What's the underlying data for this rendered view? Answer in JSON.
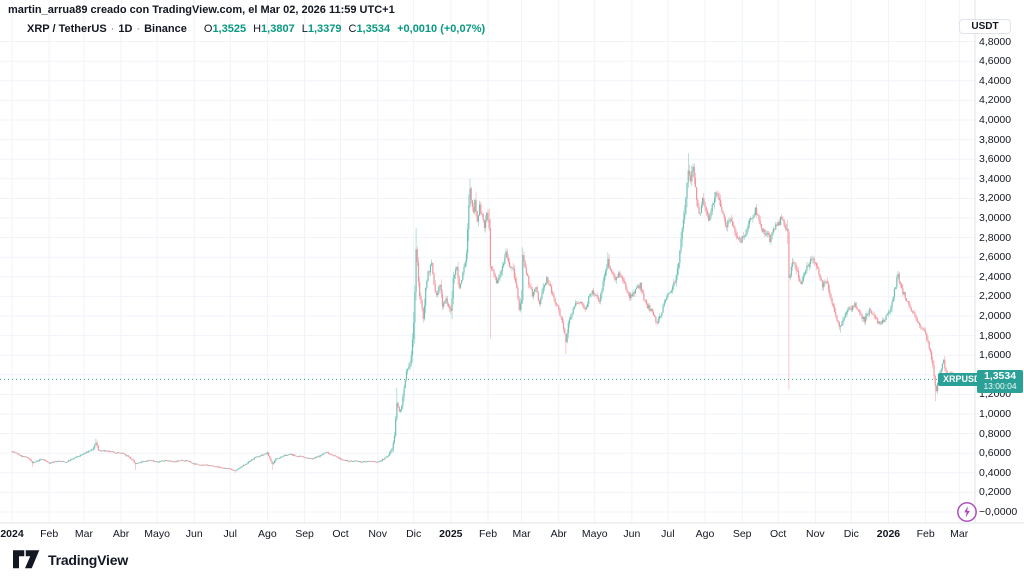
{
  "attribution": "martin_arrua89 creado con TradingView.com, el Mar 02, 2026 11:59 UTC+1",
  "legend": {
    "symbol_title": "XRP / TetherUS",
    "separator": "·",
    "interval": "1D",
    "exchange": "Binance",
    "ohlc": {
      "o_label": "O",
      "o": "1,3525",
      "h_label": "H",
      "h": "1,3807",
      "l_label": "L",
      "l": "1,3379",
      "c_label": "C",
      "c": "1,3534",
      "change": "+0,0010 (+0,07%)"
    }
  },
  "price_scale": {
    "currency_button": "USDT",
    "labels": [
      {
        "value": 4.8,
        "text": "4,8000"
      },
      {
        "value": 4.6,
        "text": "4,6000"
      },
      {
        "value": 4.4,
        "text": "4,4000"
      },
      {
        "value": 4.2,
        "text": "4,2000"
      },
      {
        "value": 4.0,
        "text": "4,0000"
      },
      {
        "value": 3.8,
        "text": "3,8000"
      },
      {
        "value": 3.6,
        "text": "3,6000"
      },
      {
        "value": 3.4,
        "text": "3,4000"
      },
      {
        "value": 3.2,
        "text": "3,2000"
      },
      {
        "value": 3.0,
        "text": "3,0000"
      },
      {
        "value": 2.8,
        "text": "2,8000"
      },
      {
        "value": 2.6,
        "text": "2,6000"
      },
      {
        "value": 2.4,
        "text": "2,4000"
      },
      {
        "value": 2.2,
        "text": "2,2000"
      },
      {
        "value": 2.0,
        "text": "2,0000"
      },
      {
        "value": 1.8,
        "text": "1,8000"
      },
      {
        "value": 1.6,
        "text": "1,6000"
      },
      {
        "value": 1.4,
        "text": "1,4000"
      },
      {
        "value": 1.2,
        "text": "1,2000"
      },
      {
        "value": 1.0,
        "text": "1,0000"
      },
      {
        "value": 0.8,
        "text": "0,8000"
      },
      {
        "value": 0.6,
        "text": "0,6000"
      },
      {
        "value": 0.4,
        "text": "0,4000"
      },
      {
        "value": 0.2,
        "text": "0,2000"
      },
      {
        "value": 0.0,
        "text": "−0,0000"
      }
    ]
  },
  "time_scale": {
    "labels": [
      {
        "text": "2024",
        "day": 0,
        "major": true
      },
      {
        "text": "Feb",
        "day": 31
      },
      {
        "text": "Mar",
        "day": 60
      },
      {
        "text": "Abr",
        "day": 91
      },
      {
        "text": "Mayo",
        "day": 121
      },
      {
        "text": "Jun",
        "day": 152
      },
      {
        "text": "Jul",
        "day": 182
      },
      {
        "text": "Ago",
        "day": 213
      },
      {
        "text": "Sep",
        "day": 244
      },
      {
        "text": "Oct",
        "day": 274
      },
      {
        "text": "Nov",
        "day": 305
      },
      {
        "text": "Dic",
        "day": 335
      },
      {
        "text": "2025",
        "day": 366,
        "major": true
      },
      {
        "text": "Feb",
        "day": 397
      },
      {
        "text": "Mar",
        "day": 425
      },
      {
        "text": "Abr",
        "day": 456
      },
      {
        "text": "Mayo",
        "day": 486
      },
      {
        "text": "Jun",
        "day": 517
      },
      {
        "text": "Jul",
        "day": 547
      },
      {
        "text": "Ago",
        "day": 578
      },
      {
        "text": "Sep",
        "day": 609
      },
      {
        "text": "Oct",
        "day": 639
      },
      {
        "text": "Nov",
        "day": 670
      },
      {
        "text": "Dic",
        "day": 700
      },
      {
        "text": "2026",
        "day": 731,
        "major": true
      },
      {
        "text": "Feb",
        "day": 762
      },
      {
        "text": "Mar",
        "day": 790
      }
    ]
  },
  "last_price": {
    "symbol_badge": "XRPUSDT",
    "price": "1,3534",
    "countdown": "13:00:04"
  },
  "footer": {
    "logo_text": "TradingView"
  },
  "colors": {
    "up": "#6bc2b3",
    "down": "#f4939c",
    "accent_teal": "#089981",
    "badge_bg": "#2aa096",
    "last_price_line": "#2aa096",
    "grid": "#f0f3fa",
    "axis_border": "#e0e3eb",
    "boost_purple": "#ab47bc",
    "text": "#131722"
  },
  "chart_data": {
    "type": "candlestick",
    "title": "XRP / TetherUS · 1D · Binance",
    "symbol": "XRPUSDT",
    "timeframe": "1D",
    "x_range": [
      "2024-01-01",
      "2026-03-02"
    ],
    "y_axis": {
      "min": 0.0,
      "max": 4.8,
      "tick_step": 0.2
    },
    "grid": true,
    "current_ohlc": {
      "open": 1.3525,
      "high": 1.3807,
      "low": 1.3379,
      "close": 1.3534,
      "change": 0.001,
      "change_pct": 0.07
    },
    "anchors": [
      [
        0,
        0.62
      ],
      [
        8,
        0.57
      ],
      [
        14,
        0.55
      ],
      [
        17,
        0.5
      ],
      [
        25,
        0.54
      ],
      [
        31,
        0.5
      ],
      [
        38,
        0.52
      ],
      [
        45,
        0.51
      ],
      [
        52,
        0.55
      ],
      [
        59,
        0.59
      ],
      [
        64,
        0.62
      ],
      [
        68,
        0.65
      ],
      [
        70,
        0.71
      ],
      [
        72,
        0.63
      ],
      [
        78,
        0.62
      ],
      [
        85,
        0.61
      ],
      [
        91,
        0.6
      ],
      [
        97,
        0.57
      ],
      [
        103,
        0.49
      ],
      [
        108,
        0.51
      ],
      [
        115,
        0.53
      ],
      [
        121,
        0.51
      ],
      [
        128,
        0.53
      ],
      [
        135,
        0.51
      ],
      [
        141,
        0.53
      ],
      [
        147,
        0.52
      ],
      [
        152,
        0.49
      ],
      [
        160,
        0.48
      ],
      [
        168,
        0.47
      ],
      [
        176,
        0.45
      ],
      [
        182,
        0.44
      ],
      [
        186,
        0.42
      ],
      [
        190,
        0.45
      ],
      [
        196,
        0.5
      ],
      [
        202,
        0.55
      ],
      [
        208,
        0.58
      ],
      [
        213,
        0.6
      ],
      [
        217,
        0.49
      ],
      [
        221,
        0.55
      ],
      [
        226,
        0.57
      ],
      [
        232,
        0.59
      ],
      [
        237,
        0.57
      ],
      [
        244,
        0.56
      ],
      [
        250,
        0.54
      ],
      [
        256,
        0.57
      ],
      [
        262,
        0.61
      ],
      [
        268,
        0.58
      ],
      [
        274,
        0.54
      ],
      [
        280,
        0.52
      ],
      [
        286,
        0.52
      ],
      [
        292,
        0.51
      ],
      [
        298,
        0.52
      ],
      [
        305,
        0.51
      ],
      [
        310,
        0.54
      ],
      [
        314,
        0.58
      ],
      [
        317,
        0.65
      ],
      [
        319,
        0.78
      ],
      [
        321,
        1.12
      ],
      [
        323,
        1.02
      ],
      [
        325,
        1.08
      ],
      [
        327,
        1.25
      ],
      [
        329,
        1.42
      ],
      [
        331,
        1.47
      ],
      [
        333,
        1.6
      ],
      [
        335,
        1.92
      ],
      [
        336,
        2.25
      ],
      [
        337,
        2.68
      ],
      [
        338,
        2.52
      ],
      [
        340,
        2.22
      ],
      [
        343,
        1.98
      ],
      [
        345,
        2.28
      ],
      [
        347,
        2.45
      ],
      [
        350,
        2.52
      ],
      [
        352,
        2.32
      ],
      [
        354,
        2.2
      ],
      [
        357,
        2.32
      ],
      [
        359,
        2.12
      ],
      [
        362,
        2.18
      ],
      [
        365,
        2.06
      ],
      [
        366,
        2.04
      ],
      [
        368,
        2.36
      ],
      [
        371,
        2.52
      ],
      [
        373,
        2.28
      ],
      [
        376,
        2.44
      ],
      [
        379,
        2.62
      ],
      [
        380,
        2.92
      ],
      [
        381,
        3.1
      ],
      [
        382,
        3.3
      ],
      [
        383,
        3.16
      ],
      [
        385,
        3.05
      ],
      [
        386,
        3.22
      ],
      [
        388,
        2.98
      ],
      [
        390,
        3.12
      ],
      [
        392,
        3.02
      ],
      [
        394,
        2.9
      ],
      [
        396,
        3.06
      ],
      [
        398,
        2.88
      ],
      [
        399,
        2.5
      ],
      [
        401,
        2.44
      ],
      [
        404,
        2.36
      ],
      [
        407,
        2.44
      ],
      [
        410,
        2.56
      ],
      [
        412,
        2.66
      ],
      [
        415,
        2.52
      ],
      [
        418,
        2.46
      ],
      [
        421,
        2.28
      ],
      [
        423,
        2.06
      ],
      [
        425,
        2.18
      ],
      [
        426,
        2.6
      ],
      [
        428,
        2.46
      ],
      [
        431,
        2.34
      ],
      [
        434,
        2.22
      ],
      [
        437,
        2.28
      ],
      [
        440,
        2.12
      ],
      [
        443,
        2.28
      ],
      [
        446,
        2.38
      ],
      [
        449,
        2.28
      ],
      [
        452,
        2.18
      ],
      [
        456,
        2.06
      ],
      [
        459,
        1.95
      ],
      [
        462,
        1.72
      ],
      [
        464,
        1.92
      ],
      [
        467,
        2.04
      ],
      [
        470,
        2.12
      ],
      [
        474,
        2.14
      ],
      [
        478,
        2.08
      ],
      [
        481,
        2.18
      ],
      [
        484,
        2.24
      ],
      [
        487,
        2.2
      ],
      [
        490,
        2.16
      ],
      [
        493,
        2.34
      ],
      [
        497,
        2.56
      ],
      [
        500,
        2.46
      ],
      [
        503,
        2.38
      ],
      [
        506,
        2.44
      ],
      [
        509,
        2.36
      ],
      [
        512,
        2.28
      ],
      [
        515,
        2.2
      ],
      [
        518,
        2.24
      ],
      [
        521,
        2.28
      ],
      [
        524,
        2.32
      ],
      [
        527,
        2.16
      ],
      [
        530,
        2.1
      ],
      [
        533,
        2.06
      ],
      [
        536,
        1.98
      ],
      [
        538,
        1.94
      ],
      [
        541,
        2.02
      ],
      [
        544,
        2.12
      ],
      [
        547,
        2.22
      ],
      [
        550,
        2.28
      ],
      [
        553,
        2.36
      ],
      [
        556,
        2.56
      ],
      [
        558,
        2.76
      ],
      [
        560,
        2.96
      ],
      [
        562,
        3.18
      ],
      [
        564,
        3.48
      ],
      [
        566,
        3.4
      ],
      [
        568,
        3.52
      ],
      [
        570,
        3.32
      ],
      [
        572,
        3.12
      ],
      [
        574,
        3.02
      ],
      [
        576,
        3.18
      ],
      [
        578,
        3.1
      ],
      [
        581,
        2.96
      ],
      [
        584,
        3.14
      ],
      [
        587,
        3.28
      ],
      [
        590,
        3.2
      ],
      [
        593,
        3.04
      ],
      [
        596,
        2.92
      ],
      [
        599,
        3.02
      ],
      [
        602,
        2.88
      ],
      [
        605,
        2.82
      ],
      [
        608,
        2.78
      ],
      [
        611,
        2.84
      ],
      [
        614,
        2.92
      ],
      [
        617,
        3.02
      ],
      [
        620,
        3.08
      ],
      [
        623,
        2.98
      ],
      [
        626,
        2.88
      ],
      [
        629,
        2.84
      ],
      [
        632,
        2.78
      ],
      [
        635,
        2.86
      ],
      [
        638,
        2.92
      ],
      [
        641,
        2.98
      ],
      [
        644,
        2.94
      ],
      [
        647,
        2.86
      ],
      [
        648,
        2.4
      ],
      [
        650,
        2.48
      ],
      [
        652,
        2.56
      ],
      [
        655,
        2.44
      ],
      [
        658,
        2.34
      ],
      [
        661,
        2.44
      ],
      [
        664,
        2.52
      ],
      [
        667,
        2.6
      ],
      [
        670,
        2.52
      ],
      [
        673,
        2.42
      ],
      [
        676,
        2.32
      ],
      [
        679,
        2.36
      ],
      [
        682,
        2.22
      ],
      [
        685,
        2.1
      ],
      [
        688,
        1.96
      ],
      [
        691,
        1.88
      ],
      [
        694,
        2.0
      ],
      [
        697,
        2.06
      ],
      [
        700,
        2.08
      ],
      [
        703,
        2.12
      ],
      [
        707,
        2.02
      ],
      [
        711,
        1.96
      ],
      [
        715,
        2.06
      ],
      [
        719,
        1.98
      ],
      [
        723,
        1.93
      ],
      [
        727,
        1.96
      ],
      [
        731,
        2.02
      ],
      [
        734,
        2.12
      ],
      [
        737,
        2.32
      ],
      [
        739,
        2.42
      ],
      [
        741,
        2.3
      ],
      [
        744,
        2.22
      ],
      [
        747,
        2.14
      ],
      [
        750,
        2.06
      ],
      [
        753,
        2.0
      ],
      [
        756,
        1.94
      ],
      [
        759,
        1.88
      ],
      [
        762,
        1.8
      ],
      [
        764,
        1.72
      ],
      [
        766,
        1.62
      ],
      [
        768,
        1.5
      ],
      [
        770,
        1.28
      ],
      [
        771,
        1.24
      ],
      [
        773,
        1.38
      ],
      [
        775,
        1.46
      ],
      [
        777,
        1.54
      ],
      [
        779,
        1.44
      ],
      [
        781,
        1.38
      ],
      [
        783,
        1.44
      ],
      [
        785,
        1.36
      ],
      [
        787,
        1.31
      ],
      [
        789,
        1.36
      ],
      [
        791,
        1.3534
      ]
    ],
    "wick_events": [
      {
        "day": 17,
        "low": 0.46
      },
      {
        "day": 70,
        "high": 0.75
      },
      {
        "day": 103,
        "low": 0.43
      },
      {
        "day": 186,
        "low": 0.4
      },
      {
        "day": 217,
        "low": 0.43
      },
      {
        "day": 321,
        "high": 1.27
      },
      {
        "day": 337,
        "high": 2.9
      },
      {
        "day": 382,
        "high": 3.4
      },
      {
        "day": 399,
        "low": 1.77
      },
      {
        "day": 426,
        "high": 2.7
      },
      {
        "day": 462,
        "low": 1.61
      },
      {
        "day": 497,
        "high": 2.65
      },
      {
        "day": 538,
        "low": 1.9
      },
      {
        "day": 564,
        "high": 3.66
      },
      {
        "day": 648,
        "low": 1.25
      },
      {
        "day": 691,
        "low": 1.83
      },
      {
        "day": 739,
        "high": 2.46
      },
      {
        "day": 770,
        "low": 1.13
      }
    ],
    "last_close": 1.3534
  }
}
